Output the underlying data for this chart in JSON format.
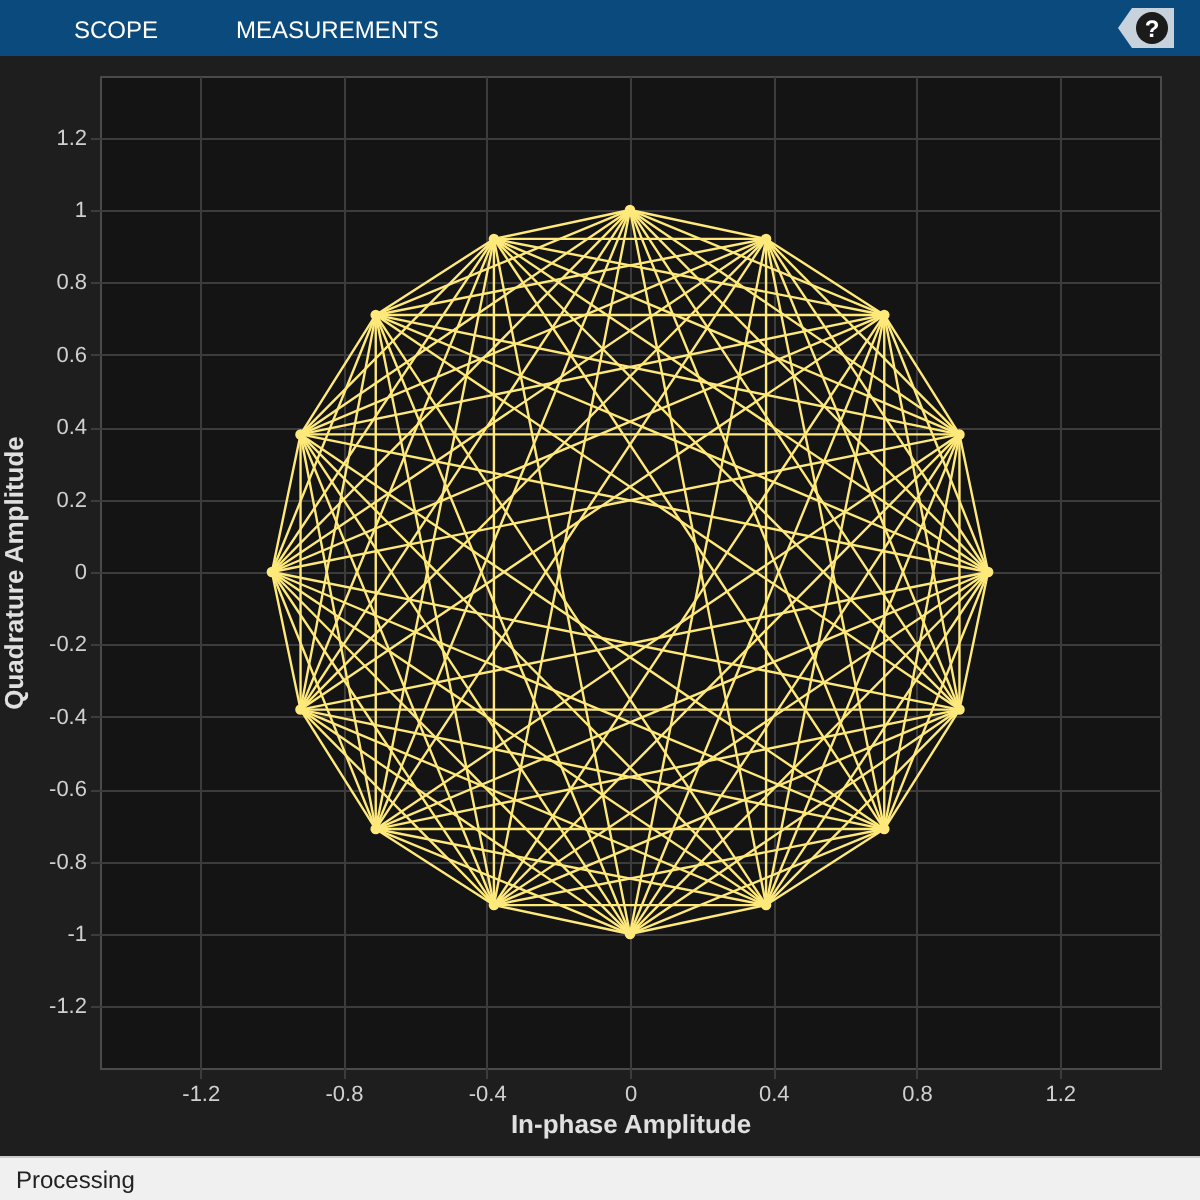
{
  "chart_data": {
    "type": "line",
    "xlabel": "In-phase Amplitude",
    "ylabel": "Quadrature Amplitude",
    "annotations": [
      "SCOPE",
      "MEASUREMENTS",
      "Processing",
      "?"
    ],
    "xlim": [
      -1.48,
      1.48
    ],
    "ylim": [
      -1.37,
      1.37
    ],
    "xticks": [
      -1.2,
      -0.8,
      -0.4,
      0,
      0.4,
      0.8,
      1.2
    ],
    "yticks": [
      -1.2,
      -1,
      -0.8,
      -0.6,
      -0.4,
      -0.2,
      0,
      0.2,
      0.4,
      0.6,
      0.8,
      1,
      1.2
    ],
    "grid": true,
    "series": [
      {
        "color": "#ffe97a",
        "x": [
          0.92,
          1
        ],
        "values": [
          0.38,
          0
        ]
      },
      {
        "color": "#ffe97a",
        "x": [
          0.71,
          0.92
        ],
        "values": [
          0.71,
          0.38
        ]
      },
      {
        "color": "#ffe97a",
        "x": [
          0.38,
          0.71
        ],
        "values": [
          0.92,
          0.71
        ]
      },
      {
        "color": "#ffe97a",
        "x": [
          0,
          0.38
        ],
        "values": [
          1,
          0.92
        ]
      },
      {
        "color": "#ffe97a",
        "x": [
          -0.38,
          0
        ],
        "values": [
          0.92,
          1
        ]
      },
      {
        "color": "#ffe97a",
        "x": [
          -0.71,
          -0.38
        ],
        "values": [
          0.71,
          0.92
        ]
      },
      {
        "color": "#ffe97a",
        "x": [
          -0.92,
          -0.71
        ],
        "values": [
          0.38,
          0.71
        ]
      },
      {
        "color": "#ffe97a",
        "x": [
          -1,
          -0.92
        ],
        "values": [
          0,
          0.38
        ]
      },
      {
        "color": "#ffe97a",
        "x": [
          -1,
          -0.92
        ],
        "values": [
          0,
          -0.38
        ]
      },
      {
        "color": "#ffe97a",
        "x": [
          -0.92,
          -0.71
        ],
        "values": [
          -0.38,
          -0.71
        ]
      },
      {
        "color": "#ffe97a",
        "x": [
          -0.71,
          -0.38
        ],
        "values": [
          -0.71,
          -0.92
        ]
      },
      {
        "color": "#ffe97a",
        "x": [
          -0.38,
          0
        ],
        "values": [
          -0.92,
          -1
        ]
      },
      {
        "color": "#ffe97a",
        "x": [
          0,
          0.38
        ],
        "values": [
          -1,
          -0.92
        ]
      },
      {
        "color": "#ffe97a",
        "x": [
          0.38,
          0.71
        ],
        "values": [
          -0.92,
          -0.71
        ]
      },
      {
        "color": "#ffe97a",
        "x": [
          0.71,
          0.92
        ],
        "values": [
          -0.71,
          -0.38
        ]
      },
      {
        "color": "#ffe97a",
        "x": [
          0.92,
          1
        ],
        "values": [
          -0.38,
          0
        ]
      },
      {
        "color": "#ffe97a",
        "x": [
          0.71,
          1
        ],
        "values": [
          0.71,
          0
        ]
      },
      {
        "color": "#ffe97a",
        "x": [
          0.38,
          0.92
        ],
        "values": [
          0.92,
          0.38
        ]
      },
      {
        "color": "#ffe97a",
        "x": [
          0,
          0.71
        ],
        "values": [
          1,
          0.71
        ]
      },
      {
        "color": "#ffe97a",
        "x": [
          -0.38,
          0.38
        ],
        "values": [
          0.92,
          0.92
        ]
      },
      {
        "color": "#ffe97a",
        "x": [
          -0.71,
          0
        ],
        "values": [
          0.71,
          1
        ]
      },
      {
        "color": "#ffe97a",
        "x": [
          -0.92,
          -0.38
        ],
        "values": [
          0.38,
          0.92
        ]
      },
      {
        "color": "#ffe97a",
        "x": [
          -1,
          -0.71
        ],
        "values": [
          0,
          0.71
        ]
      },
      {
        "color": "#ffe97a",
        "x": [
          -0.92,
          -0.92
        ],
        "values": [
          0.38,
          -0.38
        ]
      },
      {
        "color": "#ffe97a",
        "x": [
          -1,
          -0.71
        ],
        "values": [
          0,
          -0.71
        ]
      },
      {
        "color": "#ffe97a",
        "x": [
          -0.92,
          -0.38
        ],
        "values": [
          -0.38,
          -0.92
        ]
      },
      {
        "color": "#ffe97a",
        "x": [
          -0.71,
          0
        ],
        "values": [
          -0.71,
          -1
        ]
      },
      {
        "color": "#ffe97a",
        "x": [
          -0.38,
          0.38
        ],
        "values": [
          -0.92,
          -0.92
        ]
      },
      {
        "color": "#ffe97a",
        "x": [
          0,
          0.71
        ],
        "values": [
          -1,
          -0.71
        ]
      },
      {
        "color": "#ffe97a",
        "x": [
          0.38,
          0.92
        ],
        "values": [
          -0.92,
          -0.38
        ]
      },
      {
        "color": "#ffe97a",
        "x": [
          0.71,
          1
        ],
        "values": [
          -0.71,
          0
        ]
      },
      {
        "color": "#ffe97a",
        "x": [
          0.92,
          0.92
        ],
        "values": [
          -0.38,
          0.38
        ]
      },
      {
        "color": "#ffe97a",
        "x": [
          0.38,
          1
        ],
        "values": [
          0.92,
          0
        ]
      },
      {
        "color": "#ffe97a",
        "x": [
          0,
          0.92
        ],
        "values": [
          1,
          0.38
        ]
      },
      {
        "color": "#ffe97a",
        "x": [
          -0.38,
          0.71
        ],
        "values": [
          0.92,
          0.71
        ]
      },
      {
        "color": "#ffe97a",
        "x": [
          -0.71,
          0.38
        ],
        "values": [
          0.71,
          0.92
        ]
      },
      {
        "color": "#ffe97a",
        "x": [
          -0.92,
          0
        ],
        "values": [
          0.38,
          1
        ]
      },
      {
        "color": "#ffe97a",
        "x": [
          -1,
          -0.38
        ],
        "values": [
          0,
          0.92
        ]
      },
      {
        "color": "#ffe97a",
        "x": [
          -0.92,
          -0.71
        ],
        "values": [
          -0.38,
          0.71
        ]
      },
      {
        "color": "#ffe97a",
        "x": [
          -0.92,
          -0.71
        ],
        "values": [
          0.38,
          -0.71
        ]
      },
      {
        "color": "#ffe97a",
        "x": [
          -1,
          -0.38
        ],
        "values": [
          0,
          -0.92
        ]
      },
      {
        "color": "#ffe97a",
        "x": [
          -0.92,
          0
        ],
        "values": [
          -0.38,
          -1
        ]
      },
      {
        "color": "#ffe97a",
        "x": [
          -0.71,
          0.38
        ],
        "values": [
          -0.71,
          -0.92
        ]
      },
      {
        "color": "#ffe97a",
        "x": [
          -0.38,
          0.71
        ],
        "values": [
          -0.92,
          -0.71
        ]
      },
      {
        "color": "#ffe97a",
        "x": [
          0,
          0.92
        ],
        "values": [
          -1,
          -0.38
        ]
      },
      {
        "color": "#ffe97a",
        "x": [
          0.38,
          1
        ],
        "values": [
          -0.92,
          0
        ]
      },
      {
        "color": "#ffe97a",
        "x": [
          0.71,
          0.92
        ],
        "values": [
          -0.71,
          0.38
        ]
      },
      {
        "color": "#ffe97a",
        "x": [
          0.71,
          0.92
        ],
        "values": [
          0.71,
          -0.38
        ]
      },
      {
        "color": "#ffe97a",
        "x": [
          0,
          1
        ],
        "values": [
          1,
          0
        ]
      },
      {
        "color": "#ffe97a",
        "x": [
          -0.38,
          0.92
        ],
        "values": [
          0.92,
          0.38
        ]
      },
      {
        "color": "#ffe97a",
        "x": [
          -0.71,
          0.71
        ],
        "values": [
          0.71,
          0.71
        ]
      },
      {
        "color": "#ffe97a",
        "x": [
          -0.92,
          0.38
        ],
        "values": [
          0.38,
          0.92
        ]
      },
      {
        "color": "#ffe97a",
        "x": [
          -1,
          0
        ],
        "values": [
          0,
          1
        ]
      },
      {
        "color": "#ffe97a",
        "x": [
          -0.92,
          -0.38
        ],
        "values": [
          -0.38,
          0.92
        ]
      },
      {
        "color": "#ffe97a",
        "x": [
          -0.71,
          -0.71
        ],
        "values": [
          0.71,
          -0.71
        ]
      },
      {
        "color": "#ffe97a",
        "x": [
          -0.92,
          -0.38
        ],
        "values": [
          0.38,
          -0.92
        ]
      },
      {
        "color": "#ffe97a",
        "x": [
          -1,
          0
        ],
        "values": [
          0,
          -1
        ]
      },
      {
        "color": "#ffe97a",
        "x": [
          -0.92,
          0.38
        ],
        "values": [
          -0.38,
          -0.92
        ]
      },
      {
        "color": "#ffe97a",
        "x": [
          -0.71,
          0.71
        ],
        "values": [
          -0.71,
          -0.71
        ]
      },
      {
        "color": "#ffe97a",
        "x": [
          -0.38,
          0.92
        ],
        "values": [
          -0.92,
          -0.38
        ]
      },
      {
        "color": "#ffe97a",
        "x": [
          0,
          1
        ],
        "values": [
          -1,
          0
        ]
      },
      {
        "color": "#ffe97a",
        "x": [
          0.38,
          0.92
        ],
        "values": [
          -0.92,
          0.38
        ]
      },
      {
        "color": "#ffe97a",
        "x": [
          0.71,
          0.71
        ],
        "values": [
          -0.71,
          0.71
        ]
      },
      {
        "color": "#ffe97a",
        "x": [
          0.38,
          0.92
        ],
        "values": [
          0.92,
          -0.38
        ]
      },
      {
        "color": "#ffe97a",
        "x": [
          -0.38,
          1
        ],
        "values": [
          0.92,
          0
        ]
      },
      {
        "color": "#ffe97a",
        "x": [
          -0.71,
          0.92
        ],
        "values": [
          0.71,
          0.38
        ]
      },
      {
        "color": "#ffe97a",
        "x": [
          -0.92,
          0.71
        ],
        "values": [
          0.38,
          0.71
        ]
      },
      {
        "color": "#ffe97a",
        "x": [
          -1,
          0.38
        ],
        "values": [
          0,
          0.92
        ]
      },
      {
        "color": "#ffe97a",
        "x": [
          -0.92,
          0
        ],
        "values": [
          -0.38,
          1
        ]
      },
      {
        "color": "#ffe97a",
        "x": [
          -0.71,
          -0.38
        ],
        "values": [
          -0.71,
          0.92
        ]
      },
      {
        "color": "#ffe97a",
        "x": [
          -0.71,
          -0.38
        ],
        "values": [
          0.71,
          -0.92
        ]
      },
      {
        "color": "#ffe97a",
        "x": [
          -0.92,
          0
        ],
        "values": [
          0.38,
          -1
        ]
      },
      {
        "color": "#ffe97a",
        "x": [
          -1,
          0.38
        ],
        "values": [
          0,
          -0.92
        ]
      },
      {
        "color": "#ffe97a",
        "x": [
          -0.92,
          0.71
        ],
        "values": [
          -0.38,
          -0.71
        ]
      },
      {
        "color": "#ffe97a",
        "x": [
          -0.71,
          0.92
        ],
        "values": [
          -0.71,
          -0.38
        ]
      },
      {
        "color": "#ffe97a",
        "x": [
          -0.38,
          1
        ],
        "values": [
          -0.92,
          0
        ]
      },
      {
        "color": "#ffe97a",
        "x": [
          0,
          0.92
        ],
        "values": [
          -1,
          0.38
        ]
      },
      {
        "color": "#ffe97a",
        "x": [
          0.38,
          0.71
        ],
        "values": [
          -0.92,
          0.71
        ]
      },
      {
        "color": "#ffe97a",
        "x": [
          0.38,
          0.71
        ],
        "values": [
          0.92,
          -0.71
        ]
      },
      {
        "color": "#ffe97a",
        "x": [
          0,
          0.92
        ],
        "values": [
          1,
          -0.38
        ]
      },
      {
        "color": "#ffe97a",
        "x": [
          -0.71,
          1
        ],
        "values": [
          0.71,
          0
        ]
      },
      {
        "color": "#ffe97a",
        "x": [
          -0.92,
          0.92
        ],
        "values": [
          0.38,
          0.38
        ]
      },
      {
        "color": "#ffe97a",
        "x": [
          -1,
          0.71
        ],
        "values": [
          0,
          0.71
        ]
      },
      {
        "color": "#ffe97a",
        "x": [
          -0.92,
          0.38
        ],
        "values": [
          -0.38,
          0.92
        ]
      },
      {
        "color": "#ffe97a",
        "x": [
          -0.71,
          0
        ],
        "values": [
          -0.71,
          1
        ]
      },
      {
        "color": "#ffe97a",
        "x": [
          -0.38,
          -0.38
        ],
        "values": [
          0.92,
          -0.92
        ]
      },
      {
        "color": "#ffe97a",
        "x": [
          -0.71,
          0
        ],
        "values": [
          0.71,
          -1
        ]
      },
      {
        "color": "#ffe97a",
        "x": [
          -0.92,
          0.38
        ],
        "values": [
          0.38,
          -0.92
        ]
      },
      {
        "color": "#ffe97a",
        "x": [
          -1,
          0.71
        ],
        "values": [
          0,
          -0.71
        ]
      },
      {
        "color": "#ffe97a",
        "x": [
          -0.92,
          0.92
        ],
        "values": [
          -0.38,
          -0.38
        ]
      },
      {
        "color": "#ffe97a",
        "x": [
          -0.71,
          1
        ],
        "values": [
          -0.71,
          0
        ]
      },
      {
        "color": "#ffe97a",
        "x": [
          -0.38,
          0.92
        ],
        "values": [
          -0.92,
          0.38
        ]
      },
      {
        "color": "#ffe97a",
        "x": [
          0,
          0.71
        ],
        "values": [
          -1,
          0.71
        ]
      },
      {
        "color": "#ffe97a",
        "x": [
          0.38,
          0.38
        ],
        "values": [
          -0.92,
          0.92
        ]
      },
      {
        "color": "#ffe97a",
        "x": [
          0,
          0.71
        ],
        "values": [
          1,
          -0.71
        ]
      },
      {
        "color": "#ffe97a",
        "x": [
          -0.38,
          0.92
        ],
        "values": [
          0.92,
          -0.38
        ]
      },
      {
        "color": "#ffe97a",
        "x": [
          -0.92,
          1
        ],
        "values": [
          0.38,
          0
        ]
      },
      {
        "color": "#ffe97a",
        "x": [
          -1,
          0.92
        ],
        "values": [
          0,
          0.38
        ]
      },
      {
        "color": "#ffe97a",
        "x": [
          -0.92,
          0.71
        ],
        "values": [
          -0.38,
          0.71
        ]
      },
      {
        "color": "#ffe97a",
        "x": [
          -0.71,
          0.38
        ],
        "values": [
          -0.71,
          0.92
        ]
      },
      {
        "color": "#ffe97a",
        "x": [
          -0.38,
          0
        ],
        "values": [
          -0.92,
          1
        ]
      },
      {
        "color": "#ffe97a",
        "x": [
          -0.38,
          0
        ],
        "values": [
          0.92,
          -1
        ]
      },
      {
        "color": "#ffe97a",
        "x": [
          -0.71,
          0.38
        ],
        "values": [
          0.71,
          -0.92
        ]
      },
      {
        "color": "#ffe97a",
        "x": [
          -0.92,
          0.71
        ],
        "values": [
          0.38,
          -0.71
        ]
      },
      {
        "color": "#ffe97a",
        "x": [
          -1,
          0.92
        ],
        "values": [
          0,
          -0.38
        ]
      },
      {
        "color": "#ffe97a",
        "x": [
          -0.92,
          1
        ],
        "values": [
          -0.38,
          0
        ]
      },
      {
        "color": "#ffe97a",
        "x": [
          -0.71,
          0.92
        ],
        "values": [
          -0.71,
          0.38
        ]
      },
      {
        "color": "#ffe97a",
        "x": [
          -0.38,
          0.71
        ],
        "values": [
          -0.92,
          0.71
        ]
      },
      {
        "color": "#ffe97a",
        "x": [
          0,
          0.38
        ],
        "values": [
          -1,
          0.92
        ]
      },
      {
        "color": "#ffe97a",
        "x": [
          0,
          0.38
        ],
        "values": [
          1,
          -0.92
        ]
      },
      {
        "color": "#ffe97a",
        "x": [
          -0.38,
          0.71
        ],
        "values": [
          0.92,
          -0.71
        ]
      },
      {
        "color": "#ffe97a",
        "x": [
          -0.71,
          0.92
        ],
        "values": [
          0.71,
          -0.38
        ]
      },
      {
        "type": "scatter",
        "marker": "circle",
        "color": "#ffe97a",
        "x": [
          1,
          0.92,
          0.71,
          0.38,
          0,
          -0.38,
          -0.71,
          -0.92,
          -1,
          -0.92,
          -0.71,
          -0.38,
          0,
          0.38,
          0.71,
          0.92
        ],
        "values": [
          0,
          0.38,
          0.71,
          0.92,
          1,
          0.92,
          0.71,
          0.38,
          0,
          -0.38,
          -0.71,
          -0.92,
          -1,
          -0.92,
          -0.71,
          -0.38
        ]
      }
    ]
  }
}
